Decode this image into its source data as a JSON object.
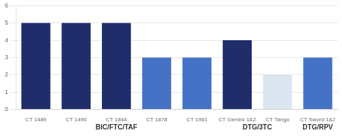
{
  "chart_data": {
    "type": "bar",
    "categories": [
      "CT 1489",
      "CT 1490",
      "CT 1844",
      "CT 1878",
      "CT 1961",
      "CT Gemini 1&2",
      "CT Tango",
      "CT Sword 1&2"
    ],
    "values": [
      5,
      5,
      5,
      3,
      3,
      4,
      2,
      3
    ],
    "colors": [
      "#1f2d6b",
      "#1f2d6b",
      "#1f2d6b",
      "#4472c4",
      "#4472c4",
      "#1f2d6b",
      "#dce6f1",
      "#4472c4"
    ],
    "groups": [
      "BIC/FTC/TAF",
      "BIC/FTC/TAF",
      "BIC/FTC/TAF",
      "BIC/FTC/TAF",
      "BIC/FTC/TAF",
      "DTG/3TC",
      "DTG/3TC",
      "DTG/RPV"
    ],
    "ylim": [
      0,
      6
    ],
    "yticks": [
      0,
      1,
      2,
      3,
      4,
      5,
      6
    ],
    "grid": true
  }
}
